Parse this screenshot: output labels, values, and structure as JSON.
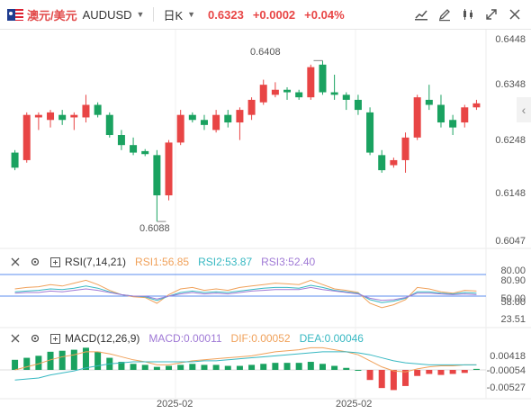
{
  "header": {
    "symbol_cn": "澳元/美元",
    "symbol_en": "AUDUSD",
    "period": "日K",
    "price": "0.6323",
    "change": "+0.0002",
    "change_pct": "+0.04%"
  },
  "tools": [
    "settings-icon",
    "edit-icon",
    "candle-type-icon",
    "expand-icon",
    "close-icon"
  ],
  "price_axis": [
    "0.6448",
    "0.6348",
    "0.6248",
    "0.6148",
    "0.6047"
  ],
  "annotations": {
    "high": "0.6408",
    "low": "0.6088"
  },
  "rsi": {
    "label": "RSI(7,14,21)",
    "rsi1": "RSI1:56.85",
    "rsi2": "RSI2:53.87",
    "rsi3": "RSI3:52.40",
    "axis": [
      "80.00",
      "80.90",
      "50.00",
      "58.00",
      "23.51"
    ]
  },
  "macd_panel": {
    "label": "MACD(12,26,9)",
    "macd": "MACD:0.00011",
    "dif": "DIF:0.00052",
    "dea": "DEA:0.00046",
    "axis": [
      "0.00418",
      "-0.00054",
      "-0.00527"
    ]
  },
  "x_axis": [
    "2025-02",
    "2025-02"
  ],
  "colors": {
    "up": "#e84545",
    "down": "#1aa260",
    "accent": "#e84545"
  },
  "chart_data": {
    "type": "candlestick",
    "ylim": [
      0.6047,
      0.6448
    ],
    "candles": [
      [
        0.6225,
        0.6195,
        0.623,
        0.619
      ],
      [
        0.621,
        0.63,
        0.6305,
        0.6205
      ],
      [
        0.6295,
        0.63,
        0.6305,
        0.627
      ],
      [
        0.629,
        0.6305,
        0.631,
        0.6275
      ],
      [
        0.63,
        0.629,
        0.631,
        0.628
      ],
      [
        0.6295,
        0.63,
        0.6305,
        0.627
      ],
      [
        0.6295,
        0.632,
        0.634,
        0.6285
      ],
      [
        0.632,
        0.63,
        0.6325,
        0.6295
      ],
      [
        0.63,
        0.626,
        0.6305,
        0.6255
      ],
      [
        0.626,
        0.624,
        0.627,
        0.623
      ],
      [
        0.624,
        0.6225,
        0.6255,
        0.622
      ],
      [
        0.6228,
        0.6222,
        0.6232,
        0.6218
      ],
      [
        0.622,
        0.614,
        0.623,
        0.6088
      ],
      [
        0.614,
        0.6245,
        0.625,
        0.613
      ],
      [
        0.6245,
        0.63,
        0.631,
        0.624
      ],
      [
        0.63,
        0.629,
        0.6305,
        0.6285
      ],
      [
        0.629,
        0.628,
        0.63,
        0.627
      ],
      [
        0.627,
        0.63,
        0.631,
        0.6265
      ],
      [
        0.63,
        0.6285,
        0.631,
        0.6275
      ],
      [
        0.6285,
        0.631,
        0.6315,
        0.625
      ],
      [
        0.63,
        0.633,
        0.6335,
        0.629
      ],
      [
        0.6325,
        0.636,
        0.637,
        0.632
      ],
      [
        0.634,
        0.635,
        0.6365,
        0.6335
      ],
      [
        0.635,
        0.6345,
        0.6355,
        0.633
      ],
      [
        0.6345,
        0.6335,
        0.635,
        0.633
      ],
      [
        0.6335,
        0.6395,
        0.64,
        0.633
      ],
      [
        0.64,
        0.6345,
        0.6408,
        0.634
      ],
      [
        0.6345,
        0.634,
        0.638,
        0.633
      ],
      [
        0.634,
        0.633,
        0.6345,
        0.631
      ],
      [
        0.633,
        0.631,
        0.634,
        0.63
      ],
      [
        0.6305,
        0.6225,
        0.6315,
        0.622
      ],
      [
        0.622,
        0.619,
        0.623,
        0.6185
      ],
      [
        0.62,
        0.621,
        0.6215,
        0.6195
      ],
      [
        0.621,
        0.6255,
        0.6265,
        0.6185
      ],
      [
        0.6255,
        0.6335,
        0.634,
        0.625
      ],
      [
        0.633,
        0.632,
        0.636,
        0.631
      ],
      [
        0.632,
        0.6285,
        0.634,
        0.6275
      ],
      [
        0.629,
        0.6275,
        0.63,
        0.626
      ],
      [
        0.6285,
        0.6315,
        0.632,
        0.6275
      ],
      [
        0.6315,
        0.6323,
        0.633,
        0.631
      ]
    ],
    "rsi1": [
      60,
      62,
      63,
      66,
      64,
      68,
      72,
      66,
      58,
      52,
      49,
      48,
      40,
      52,
      60,
      62,
      58,
      60,
      58,
      62,
      64,
      66,
      68,
      67,
      66,
      72,
      66,
      60,
      58,
      55,
      40,
      34,
      38,
      45,
      62,
      60,
      56,
      54,
      58,
      57
    ],
    "rsi2": [
      56,
      57,
      58,
      60,
      59,
      61,
      64,
      61,
      56,
      52,
      50,
      49,
      44,
      50,
      55,
      57,
      55,
      56,
      55,
      57,
      59,
      61,
      62,
      62,
      61,
      65,
      62,
      58,
      56,
      54,
      45,
      41,
      43,
      47,
      56,
      56,
      54,
      53,
      55,
      54
    ],
    "rsi3": [
      54,
      55,
      55,
      57,
      56,
      58,
      60,
      58,
      55,
      52,
      50,
      50,
      46,
      50,
      53,
      55,
      53,
      54,
      53,
      55,
      57,
      58,
      59,
      59,
      59,
      62,
      59,
      57,
      55,
      53,
      47,
      44,
      45,
      48,
      54,
      54,
      53,
      52,
      53,
      52
    ],
    "macd_hist": [
      0.001,
      0.0012,
      0.0014,
      0.0018,
      0.0019,
      0.002,
      0.0022,
      0.0018,
      0.0012,
      0.0008,
      0.0006,
      0.0005,
      0.0003,
      0.0004,
      0.0005,
      0.0006,
      0.0005,
      0.0005,
      0.0004,
      0.0004,
      0.0005,
      0.0006,
      0.0007,
      0.0007,
      0.0007,
      0.0008,
      0.0006,
      0.0004,
      0.0002,
      0.0,
      -0.001,
      -0.0018,
      -0.002,
      -0.0016,
      -0.0006,
      -0.0004,
      -0.0005,
      -0.0004,
      -0.0003,
      0.0001
    ],
    "dif": [
      0.0,
      0.0003,
      0.0006,
      0.001,
      0.0013,
      0.0015,
      0.0018,
      0.0018,
      0.0016,
      0.0013,
      0.001,
      0.0008,
      0.0005,
      0.0005,
      0.0007,
      0.0009,
      0.001,
      0.0011,
      0.0012,
      0.0013,
      0.0014,
      0.0016,
      0.0018,
      0.0019,
      0.002,
      0.0022,
      0.0022,
      0.002,
      0.0018,
      0.0015,
      0.0009,
      0.0003,
      -0.0001,
      -0.0002,
      0.0001,
      0.0003,
      0.0004,
      0.0004,
      0.0005,
      0.0005
    ],
    "dea": [
      -0.001,
      -0.0009,
      -0.0008,
      -0.0005,
      -0.0003,
      -0.0001,
      0.0002,
      0.0004,
      0.0006,
      0.0007,
      0.0008,
      0.0008,
      0.0008,
      0.0008,
      0.0008,
      0.0008,
      0.0009,
      0.0009,
      0.001,
      0.0011,
      0.0012,
      0.0013,
      0.0014,
      0.0015,
      0.0016,
      0.0017,
      0.0018,
      0.0018,
      0.0018,
      0.0017,
      0.0015,
      0.0012,
      0.0009,
      0.0007,
      0.0006,
      0.0005,
      0.0005,
      0.0005,
      0.0005,
      0.0005
    ]
  }
}
